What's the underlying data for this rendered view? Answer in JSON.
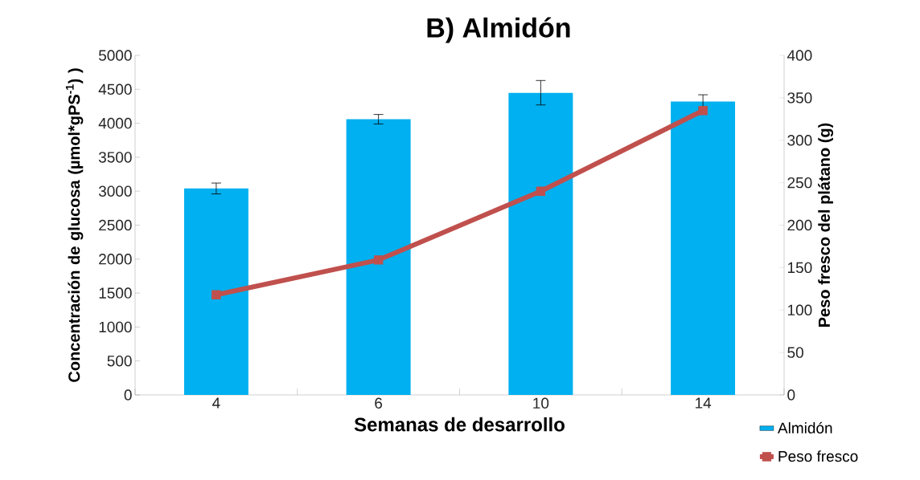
{
  "chart_data": {
    "type": "bar",
    "title": "B) Almidón",
    "xlabel": "Semanas de desarrollo",
    "ylabel": "Concentración de glucosa (µmol*gPS$^{-1}$) )",
    "y2label": "Peso fresco del plátano (g)",
    "categories": [
      "4",
      "6",
      "10",
      "14"
    ],
    "series": [
      {
        "name": "Almidón",
        "color": "#00b0f0",
        "values": [
          3040,
          4060,
          4450,
          4320
        ],
        "errors": [
          80,
          70,
          180,
          100
        ]
      },
      {
        "name": "Peso fresco",
        "type": "line",
        "axis": "y2",
        "color": "#c0504d",
        "values": [
          118,
          159,
          240,
          335
        ]
      }
    ],
    "ylim": [
      0,
      5000
    ],
    "yticks": [
      0,
      500,
      1000,
      1500,
      2000,
      2500,
      3000,
      3500,
      4000,
      4500,
      5000
    ],
    "y2lim": [
      0,
      400
    ],
    "y2ticks": [
      0,
      50,
      100,
      150,
      200,
      250,
      300,
      350,
      400
    ],
    "marker": "square",
    "legend": "bottom right",
    "grid": false
  }
}
